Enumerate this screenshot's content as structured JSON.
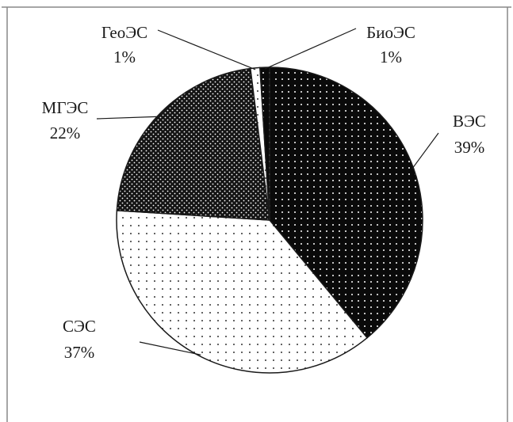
{
  "chart_data": {
    "type": "pie",
    "title": "",
    "slices": [
      {
        "name": "ВЭС",
        "value": 39,
        "label": "39%",
        "pattern": "dark-dots"
      },
      {
        "name": "СЭС",
        "value": 37,
        "label": "37%",
        "pattern": "light-dots"
      },
      {
        "name": "МГЭС",
        "value": 22,
        "label": "22%",
        "pattern": "dark-cross"
      },
      {
        "name": "ГеоЭС",
        "value": 1,
        "label": "1%",
        "pattern": "light-dots"
      },
      {
        "name": "БиоЭС",
        "value": 1,
        "label": "1%",
        "pattern": "dark-dots"
      }
    ],
    "colors": {
      "dark": "#0a0a0a",
      "light": "#ffffff",
      "outline": "#1a1a1a"
    }
  }
}
